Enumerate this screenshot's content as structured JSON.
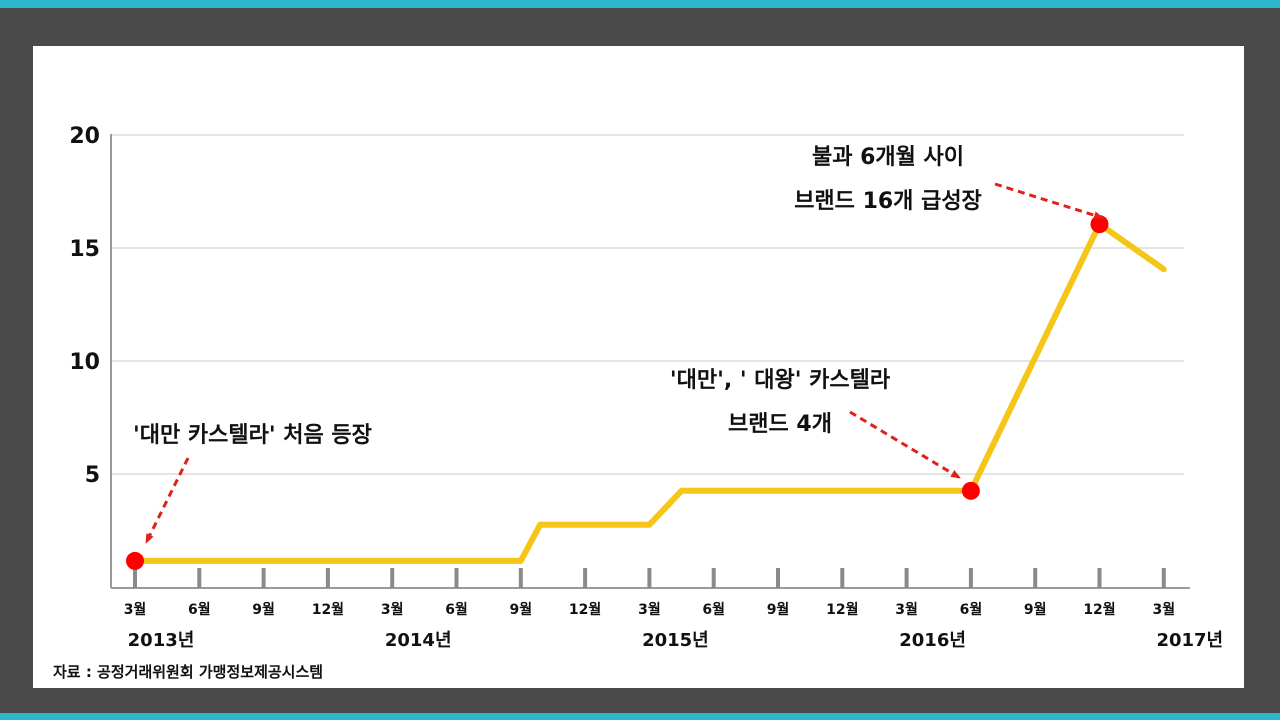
{
  "chart_data": {
    "type": "line",
    "x_labels": [
      "3월",
      "6월",
      "9월",
      "12월",
      "3월",
      "6월",
      "9월",
      "12월",
      "3월",
      "6월",
      "9월",
      "12월",
      "3월",
      "6월",
      "9월",
      "12월",
      "3월"
    ],
    "years": [
      {
        "label": "2013년",
        "index": 0
      },
      {
        "label": "2014년",
        "index": 4
      },
      {
        "label": "2015년",
        "index": 8
      },
      {
        "label": "2016년",
        "index": 12
      },
      {
        "label": "2017년",
        "index": 16
      }
    ],
    "y_ticks": [
      "5",
      "10",
      "15",
      "20"
    ],
    "ylim": [
      0,
      20
    ],
    "series": [
      {
        "color": "#f5c518",
        "points": [
          [
            0,
            1.2
          ],
          [
            1,
            1.2
          ],
          [
            2,
            1.2
          ],
          [
            3,
            1.2
          ],
          [
            4,
            1.2
          ],
          [
            5,
            1.2
          ],
          [
            6,
            1.2
          ],
          [
            6.3,
            2.8
          ],
          [
            7,
            2.8
          ],
          [
            8,
            2.8
          ],
          [
            8.5,
            4.3
          ],
          [
            9,
            4.3
          ],
          [
            10,
            4.3
          ],
          [
            11,
            4.3
          ],
          [
            12,
            4.3
          ],
          [
            13,
            4.3
          ],
          [
            15,
            16.1
          ],
          [
            16,
            14.1
          ]
        ]
      }
    ],
    "markers": [
      {
        "point": [
          0,
          1.2
        ],
        "color": "#ff0000"
      },
      {
        "point": [
          13,
          4.3
        ],
        "color": "#ff0000"
      },
      {
        "point": [
          15,
          16.1
        ],
        "color": "#ff0000"
      }
    ],
    "annotations": [
      {
        "lines": [
          "'대만 카스텔라' 처음 등장"
        ],
        "target": 0
      },
      {
        "lines": [
          "'대만', ' 대왕' 카스텔라",
          "브랜드 4개"
        ],
        "target": 1
      },
      {
        "lines": [
          "불과 6개월 사이",
          "브랜드 16개 급성장"
        ],
        "target": 2
      }
    ],
    "source": "자료 : 공정거래위원회  가맹정보제공시스템",
    "grid": true
  }
}
